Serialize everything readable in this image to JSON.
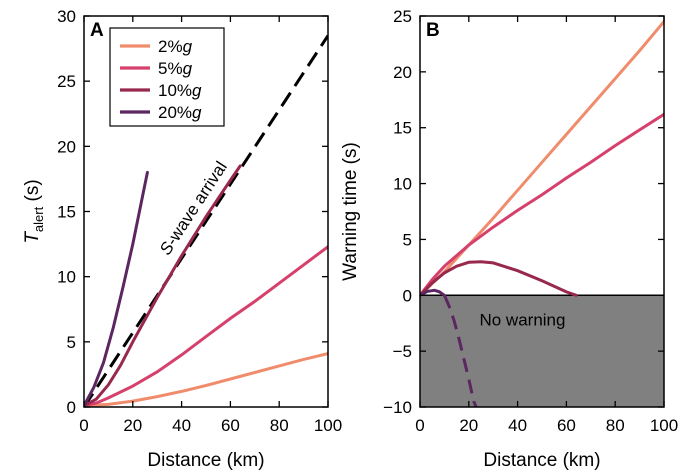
{
  "chart_data": [
    {
      "id": "A",
      "type": "line",
      "panel_label": "A",
      "xlabel": "Distance (km)",
      "ylabel_main": "T",
      "ylabel_sub": "alert",
      "ylabel_unit": " (s)",
      "xlim": [
        0,
        100
      ],
      "ylim": [
        0,
        30
      ],
      "xticks": [
        0,
        20,
        40,
        60,
        80,
        100
      ],
      "yticks": [
        0,
        5,
        10,
        15,
        20,
        25,
        30
      ],
      "legend_position": "top-left",
      "series": [
        {
          "name": "2%g",
          "legend_prefix": "2%",
          "legend_g": "g",
          "color": "#f08c6c",
          "points": [
            [
              0,
              0.1
            ],
            [
              10,
              0.2
            ],
            [
              20,
              0.45
            ],
            [
              30,
              0.8
            ],
            [
              40,
              1.2
            ],
            [
              50,
              1.65
            ],
            [
              60,
              2.15
            ],
            [
              70,
              2.65
            ],
            [
              80,
              3.15
            ],
            [
              90,
              3.65
            ],
            [
              100,
              4.1
            ]
          ]
        },
        {
          "name": "5%g",
          "legend_prefix": "5%",
          "legend_g": "g",
          "color": "#d6406c",
          "points": [
            [
              0,
              0.1
            ],
            [
              5,
              0.3
            ],
            [
              10,
              0.7
            ],
            [
              20,
              1.6
            ],
            [
              30,
              2.7
            ],
            [
              40,
              4.0
            ],
            [
              50,
              5.4
            ],
            [
              60,
              6.8
            ],
            [
              70,
              8.1
            ],
            [
              80,
              9.5
            ],
            [
              90,
              10.9
            ],
            [
              100,
              12.3
            ]
          ]
        },
        {
          "name": "10%g",
          "legend_prefix": "10%",
          "legend_g": "g",
          "color": "#98284c",
          "points": [
            [
              0,
              0.1
            ],
            [
              5,
              0.6
            ],
            [
              10,
              1.7
            ],
            [
              15,
              3.2
            ],
            [
              20,
              5.0
            ],
            [
              30,
              8.4
            ],
            [
              40,
              11.6
            ],
            [
              50,
              14.6
            ],
            [
              60,
              17.4
            ],
            [
              64,
              18.5
            ]
          ]
        },
        {
          "name": "20%g",
          "legend_prefix": "20%",
          "legend_g": "g",
          "color": "#5c2660",
          "points": [
            [
              0,
              0.1
            ],
            [
              4,
              1.5
            ],
            [
              8,
              3.4
            ],
            [
              12,
              6.1
            ],
            [
              16,
              9.2
            ],
            [
              20,
              12.5
            ],
            [
              24,
              16.2
            ],
            [
              26,
              18.0
            ]
          ]
        }
      ],
      "reference_line": {
        "label_prefix": "S",
        "label_rest": "-wave arrival",
        "style": "dashed",
        "color": "#000000",
        "points": [
          [
            0,
            0
          ],
          [
            100,
            28.5
          ]
        ]
      }
    },
    {
      "id": "B",
      "type": "line",
      "panel_label": "B",
      "xlabel": "Distance (km)",
      "ylabel": "Warning time (s)",
      "xlim": [
        0,
        100
      ],
      "ylim": [
        -10,
        25
      ],
      "xticks": [
        0,
        20,
        40,
        60,
        80,
        100
      ],
      "yticks": [
        -10,
        -5,
        0,
        5,
        10,
        15,
        20,
        25
      ],
      "shaded_region": {
        "label": "No warning",
        "y_from": -10,
        "y_to": 0,
        "color": "#808080"
      },
      "series": [
        {
          "name": "2%g",
          "color": "#f08c6c",
          "points": [
            [
              0,
              0
            ],
            [
              10,
              2.1
            ],
            [
              20,
              4.5
            ],
            [
              30,
              6.9
            ],
            [
              40,
              9.4
            ],
            [
              50,
              11.9
            ],
            [
              60,
              14.4
            ],
            [
              70,
              16.9
            ],
            [
              80,
              19.4
            ],
            [
              90,
              21.9
            ],
            [
              100,
              24.5
            ]
          ]
        },
        {
          "name": "5%g",
          "color": "#d6406c",
          "points": [
            [
              0,
              0
            ],
            [
              5,
              1.4
            ],
            [
              10,
              2.6
            ],
            [
              20,
              4.5
            ],
            [
              30,
              6.1
            ],
            [
              40,
              7.6
            ],
            [
              50,
              9.0
            ],
            [
              60,
              10.5
            ],
            [
              70,
              11.9
            ],
            [
              80,
              13.4
            ],
            [
              90,
              14.8
            ],
            [
              100,
              16.2
            ]
          ]
        },
        {
          "name": "10%g",
          "color": "#98284c",
          "points": [
            [
              0,
              0
            ],
            [
              5,
              1.1
            ],
            [
              10,
              2.0
            ],
            [
              15,
              2.6
            ],
            [
              20,
              2.95
            ],
            [
              25,
              3.0
            ],
            [
              30,
              2.9
            ],
            [
              40,
              2.2
            ],
            [
              50,
              1.3
            ],
            [
              60,
              0.3
            ],
            [
              64,
              0
            ]
          ]
        },
        {
          "name": "20%g",
          "color": "#5c2660",
          "points": [
            [
              0,
              0
            ],
            [
              3,
              0.35
            ],
            [
              6,
              0.45
            ],
            [
              8,
              0.3
            ],
            [
              10,
              0
            ]
          ],
          "dashed_continuation": [
            [
              10,
              0
            ],
            [
              12,
              -1.0
            ],
            [
              14,
              -2.3
            ],
            [
              16,
              -3.9
            ],
            [
              18,
              -5.7
            ],
            [
              20,
              -7.5
            ],
            [
              22,
              -9.5
            ],
            [
              23,
              -10
            ]
          ]
        }
      ]
    }
  ]
}
